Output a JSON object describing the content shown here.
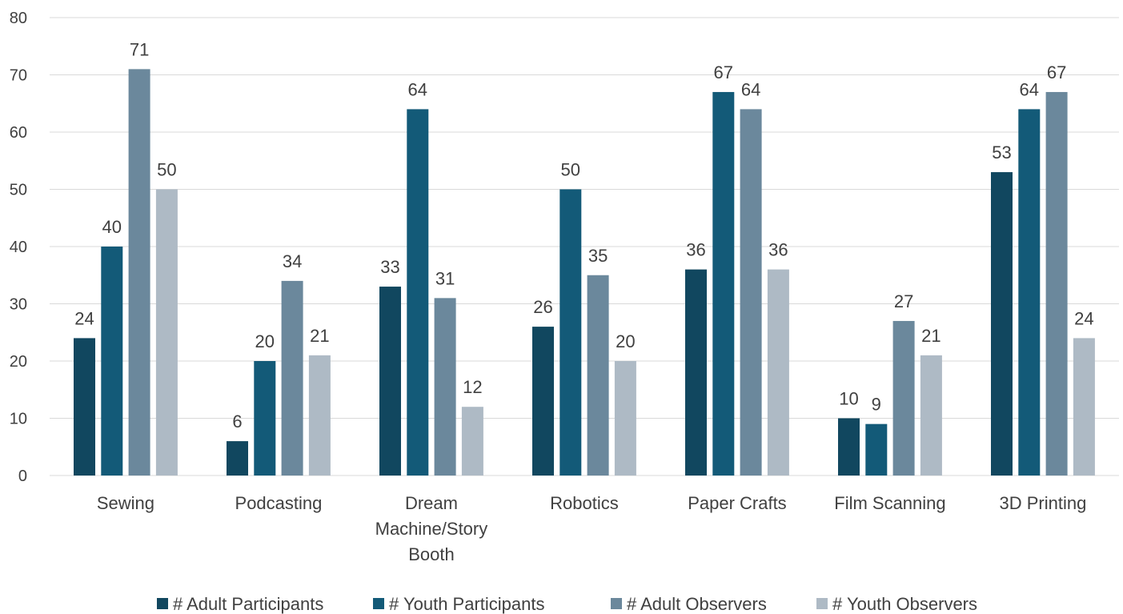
{
  "chart_data": {
    "type": "bar",
    "categories": [
      [
        "Sewing"
      ],
      [
        "Podcasting"
      ],
      [
        "Dream",
        "Machine/Story",
        "Booth"
      ],
      [
        "Robotics"
      ],
      [
        "Paper Crafts"
      ],
      [
        "Film Scanning"
      ],
      [
        "3D Printing"
      ]
    ],
    "series": [
      {
        "name": "# Adult Participants",
        "color": "#11475f",
        "values": [
          24,
          6,
          33,
          26,
          36,
          10,
          53
        ]
      },
      {
        "name": "# Youth Participants",
        "color": "#135a78",
        "values": [
          40,
          20,
          64,
          50,
          67,
          9,
          64
        ]
      },
      {
        "name": "# Adult Observers",
        "color": "#6b889c",
        "values": [
          71,
          34,
          31,
          35,
          64,
          27,
          67
        ]
      },
      {
        "name": "# Youth Observers",
        "color": "#aebac5",
        "values": [
          50,
          21,
          12,
          20,
          36,
          21,
          24
        ]
      }
    ],
    "yticks": [
      0,
      10,
      20,
      30,
      40,
      50,
      60,
      70,
      80
    ],
    "ylim": [
      0,
      80
    ],
    "grid": true,
    "legend_position": "bottom",
    "data_labels": true
  }
}
